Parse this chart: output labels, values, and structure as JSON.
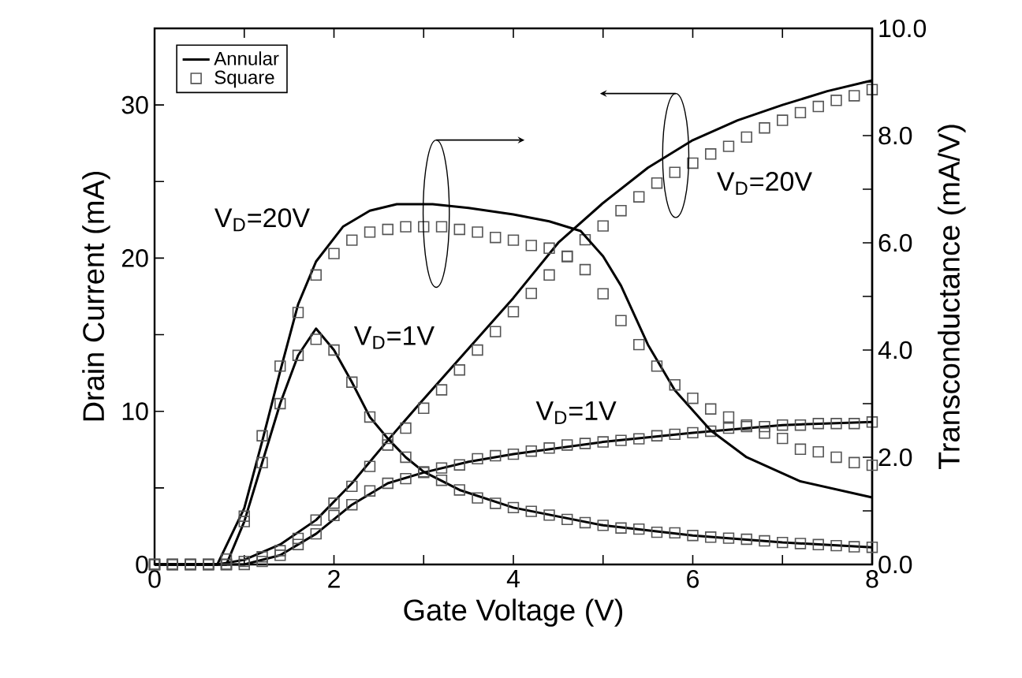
{
  "chart_data": {
    "type": "line",
    "xlabel": "Gate Voltage (V)",
    "ylabel": "Drain Current (mA)",
    "y2label": "Transconductance (mA/V)",
    "xlim": [
      0,
      8
    ],
    "xticks": [
      0,
      {
        "value": 1,
        "label": null
      },
      2,
      {
        "value": 3,
        "label": null
      },
      4,
      {
        "value": 5,
        "label": null
      },
      6,
      {
        "value": 7,
        "label": null
      },
      8
    ],
    "ylim": [
      0,
      35
    ],
    "yticks": [
      0,
      {
        "value": 5,
        "label": null
      },
      10,
      {
        "value": 15,
        "label": null
      },
      20,
      {
        "value": 25,
        "label": null
      },
      30
    ],
    "y2lim": [
      0,
      10
    ],
    "y2ticks": [
      {
        "value": 0,
        "label": "0.0"
      },
      {
        "value": 1,
        "label": null
      },
      {
        "value": 2,
        "label": "2.0"
      },
      {
        "value": 3,
        "label": null
      },
      {
        "value": 4,
        "label": "4.0"
      },
      {
        "value": 5,
        "label": null
      },
      {
        "value": 6,
        "label": "6.0"
      },
      {
        "value": 7,
        "label": null
      },
      {
        "value": 8,
        "label": "8.0"
      },
      {
        "value": 9,
        "label": null
      },
      {
        "value": 10,
        "label": "10.0"
      }
    ],
    "legend": "top left",
    "annotations": [
      "V$_{D}$=20V",
      "V$_{D}$=20V",
      "V$_{D}$=1V",
      "V$_{D}$=1V"
    ],
    "series": [
      {
        "name": "Annular",
        "marker": "none",
        "color": "#000000",
        "x": [
          0,
          0.7,
          1.0,
          1.4,
          1.8,
          2.2,
          2.6,
          3.0,
          3.5,
          4.0,
          4.5,
          5.0,
          5.5,
          6.0,
          6.5,
          7.0,
          7.5,
          8.0
        ],
        "values": [
          0,
          0,
          0.3,
          1.3,
          2.9,
          5.3,
          8.1,
          10.8,
          14.1,
          17.4,
          21.0,
          23.6,
          25.9,
          27.7,
          29.0,
          30.0,
          30.9,
          31.6
        ]
      },
      {
        "name": "Square",
        "type": "scatter",
        "marker": "square",
        "color": "#555555",
        "x": [
          0,
          0.2,
          0.4,
          0.6,
          0.8,
          1.0,
          1.2,
          1.4,
          1.6,
          1.8,
          2.0,
          2.2,
          2.4,
          2.6,
          2.8,
          3.0,
          3.2,
          3.4,
          3.6,
          3.8,
          4.0,
          4.2,
          4.4,
          4.6,
          4.8,
          5.0,
          5.2,
          5.4,
          5.6,
          5.8,
          6.0,
          6.2,
          6.4,
          6.6,
          6.8,
          7.0,
          7.2,
          7.4,
          7.6,
          7.8,
          8.0
        ],
        "values": [
          0,
          0,
          0,
          0,
          0,
          0.2,
          0.5,
          0.9,
          1.7,
          2.9,
          4.0,
          5.1,
          6.4,
          7.8,
          8.9,
          10.2,
          11.4,
          12.7,
          14.0,
          15.2,
          16.5,
          17.7,
          18.9,
          20.1,
          21.2,
          22.1,
          23.1,
          24.0,
          24.9,
          25.6,
          26.2,
          26.8,
          27.3,
          27.9,
          28.5,
          29.0,
          29.5,
          29.9,
          30.3,
          30.6,
          31.0
        ]
      },
      {
        "axis": "y2",
        "marker": "none",
        "color": "#000000",
        "x": [
          0,
          0.7,
          1.0,
          1.2,
          1.4,
          1.6,
          1.8,
          2.1,
          2.4,
          2.7,
          3.1,
          3.5,
          4.0,
          4.4,
          4.75,
          5.0,
          5.2,
          5.5,
          5.8,
          6.2,
          6.6,
          7.2,
          8.0
        ],
        "values": [
          0,
          0,
          1.05,
          2.3,
          3.6,
          4.85,
          5.65,
          6.3,
          6.6,
          6.72,
          6.72,
          6.65,
          6.53,
          6.4,
          6.22,
          5.75,
          5.2,
          4.1,
          3.25,
          2.5,
          2.0,
          1.55,
          1.25
        ]
      },
      {
        "type": "scatter",
        "axis": "y2",
        "marker": "square",
        "color": "#555555",
        "x": [
          0,
          0.2,
          0.4,
          0.6,
          0.8,
          1.0,
          1.2,
          1.4,
          1.6,
          1.8,
          2.0,
          2.2,
          2.4,
          2.6,
          2.8,
          3.0,
          3.2,
          3.4,
          3.6,
          3.8,
          4.0,
          4.2,
          4.4,
          4.6,
          4.8,
          5.0,
          5.2,
          5.4,
          5.6,
          5.8,
          6.0,
          6.2,
          6.4,
          6.6,
          6.8,
          7.0,
          7.2,
          7.4,
          7.6,
          7.8,
          8.0
        ],
        "values": [
          0,
          0,
          0,
          0,
          0.1,
          0.9,
          2.4,
          3.7,
          4.7,
          5.4,
          5.8,
          6.05,
          6.2,
          6.25,
          6.3,
          6.3,
          6.3,
          6.25,
          6.2,
          6.1,
          6.05,
          5.95,
          5.9,
          5.75,
          5.5,
          5.05,
          4.55,
          4.1,
          3.7,
          3.35,
          3.1,
          2.9,
          2.75,
          2.6,
          2.45,
          2.35,
          2.15,
          2.1,
          2.0,
          1.9,
          1.85
        ]
      },
      {
        "marker": "none",
        "color": "#000000",
        "x": [
          0,
          1.0,
          1.4,
          1.8,
          2.2,
          2.6,
          3.0,
          3.5,
          4.0,
          5.0,
          6.0,
          7.0,
          8.0
        ],
        "values": [
          0,
          0,
          0.6,
          2.0,
          3.9,
          5.3,
          6.0,
          6.7,
          7.2,
          8.0,
          8.6,
          9.1,
          9.3
        ]
      },
      {
        "type": "scatter",
        "marker": "square",
        "color": "#555555",
        "x": [
          0,
          0.2,
          0.4,
          0.6,
          0.8,
          1.0,
          1.2,
          1.4,
          1.6,
          1.8,
          2.0,
          2.2,
          2.4,
          2.6,
          2.8,
          3.0,
          3.2,
          3.4,
          3.6,
          3.8,
          4.0,
          4.2,
          4.4,
          4.6,
          4.8,
          5.0,
          5.2,
          5.4,
          5.6,
          5.8,
          6.0,
          6.2,
          6.4,
          6.6,
          6.8,
          7.0,
          7.2,
          7.4,
          7.6,
          7.8,
          8.0
        ],
        "values": [
          0,
          0,
          0,
          0,
          0,
          0,
          0.2,
          0.6,
          1.3,
          2.0,
          3.2,
          3.9,
          4.8,
          5.3,
          5.6,
          6.0,
          6.3,
          6.5,
          6.9,
          7.1,
          7.2,
          7.4,
          7.6,
          7.8,
          7.9,
          8.0,
          8.1,
          8.2,
          8.4,
          8.5,
          8.6,
          8.7,
          8.9,
          9.0,
          9.0,
          9.1,
          9.1,
          9.2,
          9.2,
          9.2,
          9.3
        ]
      },
      {
        "axis": "y2",
        "marker": "none",
        "color": "#000000",
        "x": [
          0,
          0.8,
          1.0,
          1.2,
          1.4,
          1.6,
          1.8,
          2.0,
          2.2,
          2.4,
          2.6,
          2.8,
          3.0,
          3.4,
          4.0,
          5.0,
          6.0,
          7.0,
          8.0
        ],
        "values": [
          0,
          0,
          0.8,
          1.9,
          3.0,
          3.9,
          4.4,
          4.0,
          3.4,
          2.75,
          2.35,
          2.0,
          1.73,
          1.39,
          1.06,
          0.73,
          0.54,
          0.41,
          0.32
        ]
      },
      {
        "type": "scatter",
        "axis": "y2",
        "marker": "square",
        "color": "#555555",
        "x": [
          0,
          0.2,
          0.4,
          0.6,
          0.8,
          1.0,
          1.2,
          1.4,
          1.6,
          1.8,
          2.0,
          2.2,
          2.4,
          2.6,
          2.8,
          3.0,
          3.2,
          3.4,
          3.6,
          3.8,
          4.0,
          4.2,
          4.4,
          4.6,
          4.8,
          5.0,
          5.2,
          5.4,
          5.6,
          5.8,
          6.0,
          6.2,
          6.4,
          6.6,
          6.8,
          7.0,
          7.2,
          7.4,
          7.6,
          7.8,
          8.0
        ],
        "values": [
          0,
          0,
          0,
          0,
          0,
          0.8,
          1.9,
          3.0,
          3.9,
          4.2,
          4.0,
          3.4,
          2.75,
          2.35,
          2.0,
          1.73,
          1.57,
          1.39,
          1.24,
          1.14,
          1.06,
          0.99,
          0.92,
          0.84,
          0.78,
          0.73,
          0.68,
          0.66,
          0.6,
          0.59,
          0.54,
          0.51,
          0.49,
          0.47,
          0.44,
          0.41,
          0.39,
          0.37,
          0.35,
          0.33,
          0.32
        ]
      }
    ]
  }
}
